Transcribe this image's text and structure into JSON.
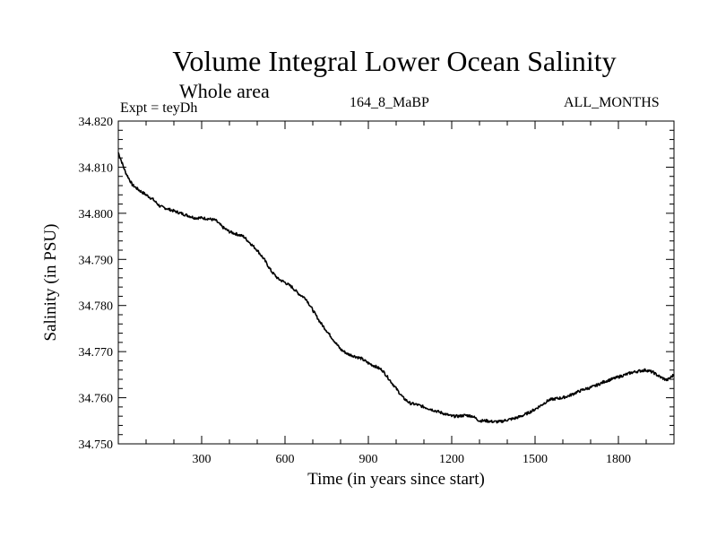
{
  "chart_data": {
    "type": "line",
    "title": "Volume Integral Lower Ocean Salinity",
    "subtitle": "Whole area",
    "experiment_label": "Expt = teyDh",
    "experiment_code": "164_8_MaBP",
    "months_label": "ALL_MONTHS",
    "xlabel": "Time (in years since start)",
    "ylabel": "Salinity (in PSU)",
    "xlim": [
      0,
      2000
    ],
    "ylim": [
      34.75,
      34.82
    ],
    "xticks": [
      300,
      600,
      900,
      1200,
      1500,
      1800
    ],
    "yticks": [
      34.75,
      34.76,
      34.77,
      34.78,
      34.79,
      34.8,
      34.81,
      34.82
    ],
    "grid": false,
    "series": [
      {
        "name": "Salinity",
        "color": "#000000",
        "x": [
          0,
          25,
          50,
          75,
          100,
          125,
          150,
          175,
          200,
          225,
          250,
          275,
          300,
          325,
          350,
          375,
          400,
          425,
          450,
          475,
          500,
          525,
          550,
          575,
          600,
          625,
          650,
          675,
          700,
          725,
          750,
          775,
          800,
          825,
          850,
          875,
          900,
          925,
          950,
          975,
          1000,
          1025,
          1050,
          1075,
          1100,
          1125,
          1150,
          1175,
          1200,
          1225,
          1250,
          1275,
          1300,
          1325,
          1350,
          1375,
          1400,
          1425,
          1450,
          1475,
          1500,
          1525,
          1550,
          1575,
          1600,
          1625,
          1650,
          1675,
          1700,
          1725,
          1750,
          1775,
          1800,
          1825,
          1850,
          1875,
          1900,
          1925,
          1950,
          1975,
          2000
        ],
        "values": [
          34.8132,
          34.809,
          34.8062,
          34.805,
          34.804,
          34.803,
          34.8015,
          34.801,
          34.8005,
          34.8,
          34.7995,
          34.799,
          34.799,
          34.7988,
          34.7985,
          34.797,
          34.796,
          34.7955,
          34.795,
          34.7935,
          34.792,
          34.79,
          34.7875,
          34.7858,
          34.785,
          34.784,
          34.7825,
          34.7815,
          34.779,
          34.7765,
          34.7745,
          34.7725,
          34.7705,
          34.7695,
          34.769,
          34.7685,
          34.7675,
          34.7668,
          34.766,
          34.764,
          34.762,
          34.76,
          34.7588,
          34.7585,
          34.758,
          34.7575,
          34.757,
          34.7565,
          34.756,
          34.756,
          34.7562,
          34.756,
          34.755,
          34.755,
          34.7548,
          34.7548,
          34.7552,
          34.7555,
          34.756,
          34.7567,
          34.7575,
          34.7585,
          34.7595,
          34.7598,
          34.76,
          34.7605,
          34.7612,
          34.7618,
          34.7622,
          34.7628,
          34.7635,
          34.764,
          34.7645,
          34.765,
          34.7655,
          34.7658,
          34.766,
          34.7655,
          34.7645,
          34.7638,
          34.765
        ]
      }
    ]
  }
}
